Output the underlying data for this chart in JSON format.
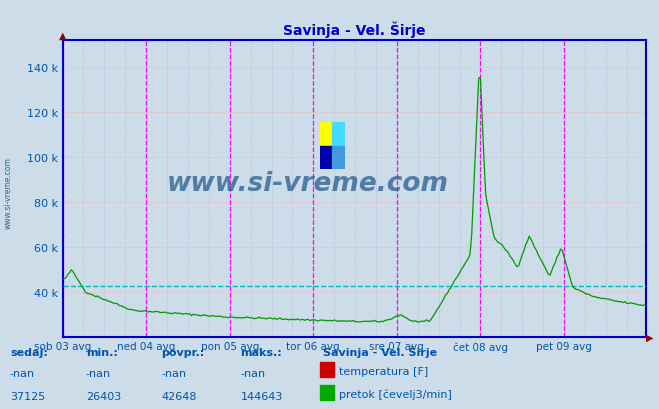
{
  "title": "Savinja - Vel. Širje",
  "title_color": "#0000cc",
  "bg_color": "#ccdce8",
  "plot_bg_color": "#ccdce8",
  "y_label_color": "#0055aa",
  "x_label_color": "#0055aa",
  "ylim": [
    20000,
    152000
  ],
  "yticks": [
    40000,
    60000,
    80000,
    100000,
    120000,
    140000
  ],
  "xtick_labels": [
    "sob 03 avg",
    "ned 04 avg",
    "pon 05 avg",
    "tor 06 avg",
    "sre 07 avg",
    "čet 08 avg",
    "pet 09 avg"
  ],
  "vline_color": "#ff00ff",
  "hgrid_color": "#ffaaaa",
  "vgrid_color": "#aaaacc",
  "axis_color": "#0000cc",
  "line_color": "#009900",
  "avg_line_color": "#00bbbb",
  "avg_value": 42648,
  "watermark_text": "www.si-vreme.com",
  "watermark_color": "#1a5588",
  "legend_title": "Savinja - Vel. Širje",
  "legend_items": [
    "temperatura [F]",
    "pretok [čevelj3/min]"
  ],
  "legend_colors": [
    "#cc0000",
    "#00aa00"
  ],
  "table_headers": [
    "sedaj:",
    "min.:",
    "povpr.:",
    "maks.:"
  ],
  "table_row1": [
    "-nan",
    "-nan",
    "-nan",
    "-nan"
  ],
  "table_row2": [
    "37125",
    "26403",
    "42648",
    "144643"
  ],
  "n_points": 336,
  "spike_value": 144643
}
